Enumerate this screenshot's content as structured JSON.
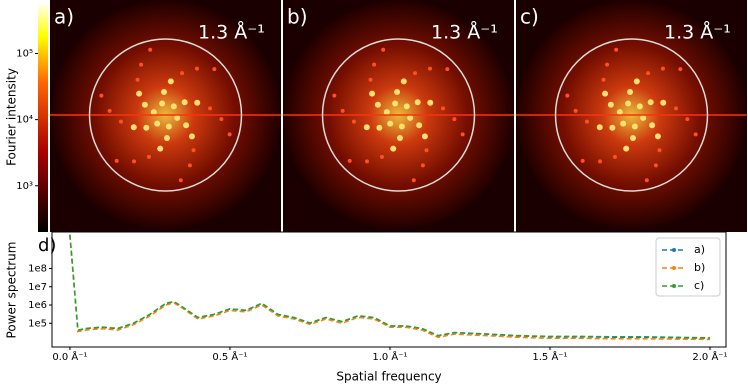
{
  "chart_data": [
    {
      "type": "heatmap",
      "panels": [
        {
          "label": "a)",
          "annotation": "1.3 Å⁻¹"
        },
        {
          "label": "b)",
          "annotation": "1.3 Å⁻¹"
        },
        {
          "label": "c)",
          "annotation": "1.3 Å⁻¹"
        }
      ],
      "colorbar": {
        "label": "Fourier intensity",
        "log": true,
        "lim": [
          200,
          600000
        ],
        "ticks": [
          {
            "value": 1000,
            "label": "10³"
          },
          {
            "value": 10000,
            "label": "10⁴"
          },
          {
            "value": 100000,
            "label": "10⁵"
          }
        ]
      }
    },
    {
      "type": "line",
      "panel_label": "d)",
      "xlabel": "Spatial frequency",
      "ylabel": "Power spectrum",
      "log_y": true,
      "legend": "upper right",
      "xlim": [
        -0.056,
        2.05
      ],
      "ylim": [
        5000,
        10000000000
      ],
      "xticks": [
        {
          "value": 0,
          "label": "0.0 Å⁻¹"
        },
        {
          "value": 0.5,
          "label": "0.5 Å⁻¹"
        },
        {
          "value": 1,
          "label": "1.0 Å⁻¹"
        },
        {
          "value": 1.5,
          "label": "1.5 Å⁻¹"
        },
        {
          "value": 2,
          "label": "2.0 Å⁻¹"
        }
      ],
      "yticks": [
        {
          "value": 100000,
          "label": "1e5"
        },
        {
          "value": 1000000,
          "label": "1e6"
        },
        {
          "value": 10000000,
          "label": "1e7"
        },
        {
          "value": 100000000,
          "label": "1e8"
        }
      ],
      "x": [
        0,
        0.025,
        0.05,
        0.1,
        0.15,
        0.2,
        0.25,
        0.3,
        0.325,
        0.35,
        0.4,
        0.45,
        0.5,
        0.55,
        0.6,
        0.65,
        0.7,
        0.75,
        0.8,
        0.85,
        0.9,
        0.95,
        1.0,
        1.05,
        1.1,
        1.15,
        1.2,
        1.3,
        1.4,
        1.5,
        1.6,
        1.7,
        1.8,
        1.9,
        2.0
      ],
      "series": [
        {
          "name": "a)",
          "color": "#1f77b4",
          "values": [
            7000000000,
            40000,
            50000,
            60000,
            50000,
            100000,
            300000,
            1200000,
            1500000,
            800000,
            200000,
            300000,
            600000,
            500000,
            1200000,
            300000,
            200000,
            100000,
            200000,
            120000,
            250000,
            200000,
            70000,
            70000,
            50000,
            20000,
            30000,
            25000,
            20000,
            18000,
            18000,
            17000,
            17000,
            16000,
            15000
          ]
        },
        {
          "name": "b)",
          "color": "#ff7f0e",
          "values": [
            7000000000,
            35000,
            42000,
            50000,
            42000,
            85000,
            250000,
            1000000,
            1300000,
            700000,
            170000,
            250000,
            500000,
            420000,
            1000000,
            250000,
            170000,
            85000,
            170000,
            100000,
            210000,
            170000,
            60000,
            60000,
            42000,
            17000,
            25000,
            21000,
            17000,
            15000,
            15000,
            14000,
            14000,
            13500,
            13000
          ]
        },
        {
          "name": "c)",
          "color": "#2ca02c",
          "values": [
            7000000000,
            42000,
            52000,
            62000,
            52000,
            105000,
            310000,
            1250000,
            1550000,
            820000,
            210000,
            310000,
            620000,
            520000,
            1250000,
            310000,
            210000,
            105000,
            210000,
            125000,
            260000,
            210000,
            72000,
            72000,
            52000,
            21000,
            31000,
            26000,
            21000,
            19000,
            19000,
            18000,
            18000,
            17000,
            16000
          ]
        }
      ]
    }
  ]
}
